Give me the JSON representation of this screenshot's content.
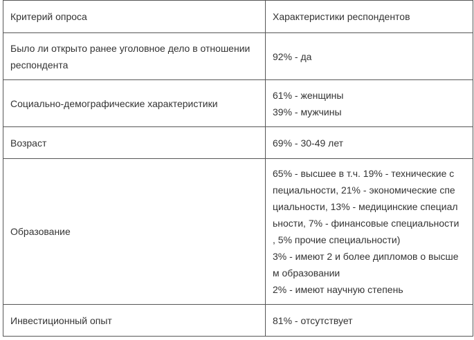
{
  "table": {
    "header": [
      "Критерий опроса",
      "Характеристики респондентов"
    ],
    "rows": [
      [
        [
          "Было ли открыто ранее уголовное дело в отношении",
          "респондента"
        ],
        [
          "92% - да"
        ]
      ],
      [
        [
          "Социально-демографические характеристики"
        ],
        [
          "61% - женщины",
          "39% - мужчины"
        ]
      ],
      [
        [
          "Возраст"
        ],
        [
          "69% - 30-49 лет"
        ]
      ],
      [
        [
          "Образование"
        ],
        [
          "65% - высшее в т.ч. 19% - технические с",
          "пециальности, 21% - экономические спе",
          "циальности, 13% - медицинские специал",
          "ьности, 7% - финансовые специальности",
          ", 5% прочие специальности)",
          "3% - имеют 2 и более дипломов о высше",
          "м образовании",
          "2% - имеют научную степень"
        ]
      ],
      [
        [
          "Инвестиционный опыт"
        ],
        [
          "81% - отсутствует"
        ]
      ]
    ]
  }
}
